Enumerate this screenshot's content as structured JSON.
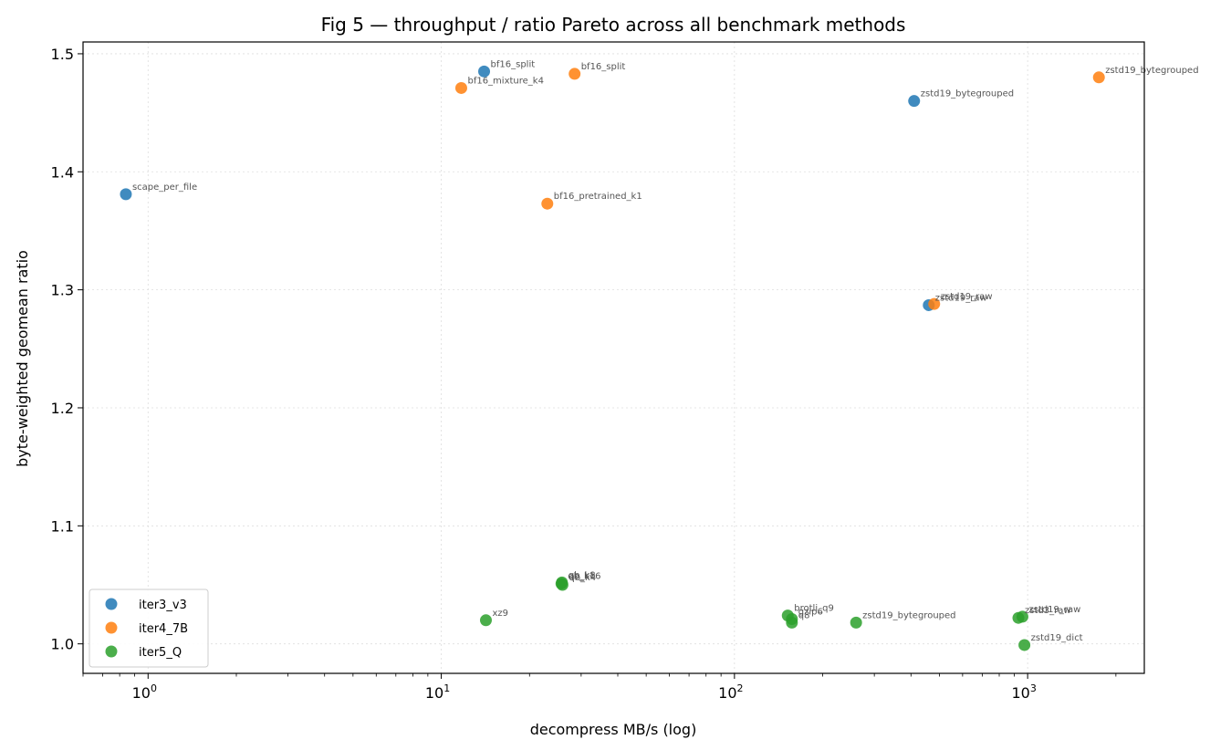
{
  "chart_data": {
    "type": "scatter",
    "title": "Fig 5 — throughput / ratio Pareto across all benchmark methods",
    "xlabel": "decompress MB/s (log)",
    "ylabel": "byte-weighted geomean ratio",
    "xscale": "log",
    "xlim": [
      0.6,
      2500
    ],
    "ylim": [
      0.975,
      1.51
    ],
    "grid": true,
    "legend_position": "lower-left",
    "x_ticks": [
      {
        "value": 1,
        "base": "10",
        "exp": "0"
      },
      {
        "value": 10,
        "base": "10",
        "exp": "1"
      },
      {
        "value": 100,
        "base": "10",
        "exp": "2"
      },
      {
        "value": 1000,
        "base": "10",
        "exp": "3"
      }
    ],
    "y_ticks": [
      "1.0",
      "1.1",
      "1.2",
      "1.3",
      "1.4",
      "1.5"
    ],
    "series": [
      {
        "name": "iter3_v3",
        "color": "#1f77b4",
        "points": [
          {
            "x": 0.84,
            "y": 1.381,
            "label": "scape_per_file"
          },
          {
            "x": 14.0,
            "y": 1.485,
            "label": "bf16_split"
          },
          {
            "x": 410,
            "y": 1.46,
            "label": "zstd19_bytegrouped"
          },
          {
            "x": 460,
            "y": 1.287,
            "label": "zstd19_raw"
          }
        ]
      },
      {
        "name": "iter4_7B",
        "color": "#ff7f0e",
        "points": [
          {
            "x": 11.7,
            "y": 1.471,
            "label": "bf16_mixture_k4"
          },
          {
            "x": 28.5,
            "y": 1.483,
            "label": "bf16_split"
          },
          {
            "x": 23.0,
            "y": 1.373,
            "label": "bf16_pretrained_k1"
          },
          {
            "x": 480,
            "y": 1.288,
            "label": "zstd19_raw"
          },
          {
            "x": 1750,
            "y": 1.48,
            "label": "zstd19_bytegrouped"
          }
        ]
      },
      {
        "name": "iter5_Q",
        "color": "#2ca02c",
        "points": [
          {
            "x": 14.2,
            "y": 1.02,
            "label": "xz9"
          },
          {
            "x": 25.8,
            "y": 1.052,
            "label": "qb_k8"
          },
          {
            "x": 25.7,
            "y": 1.051,
            "label": "qb_k16"
          },
          {
            "x": 25.9,
            "y": 1.05,
            "label": "qb_k4"
          },
          {
            "x": 152,
            "y": 1.024,
            "label": "brotli_q9"
          },
          {
            "x": 157,
            "y": 1.021,
            "label": "gzip6"
          },
          {
            "x": 157,
            "y": 1.018,
            "label": "q8"
          },
          {
            "x": 260,
            "y": 1.018,
            "label": "zstd19_bytegrouped"
          },
          {
            "x": 930,
            "y": 1.022,
            "label": "zstd3_raw"
          },
          {
            "x": 960,
            "y": 1.023,
            "label": "zstd19_raw"
          },
          {
            "x": 975,
            "y": 0.999,
            "label": "zstd19_dict"
          }
        ]
      }
    ]
  }
}
